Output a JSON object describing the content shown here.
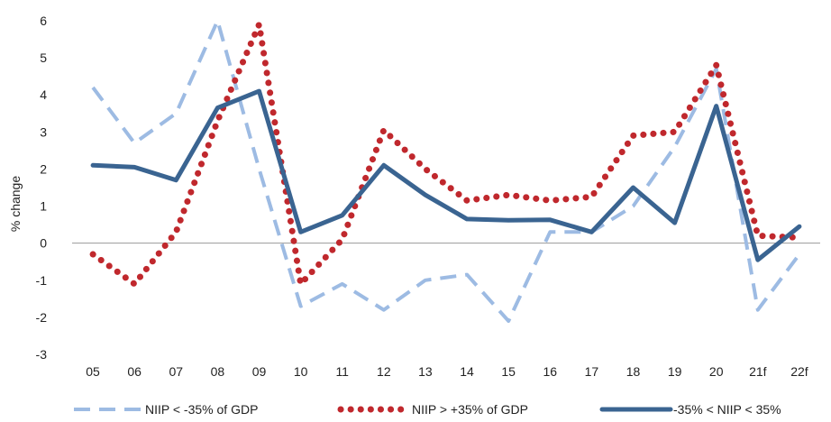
{
  "chart_data": {
    "type": "line",
    "ylabel": "% change",
    "xlabel": "",
    "title": "",
    "ylim": [
      -3,
      6
    ],
    "yticks": [
      -3,
      -2,
      -1,
      0,
      1,
      2,
      3,
      4,
      5,
      6
    ],
    "categories": [
      "05",
      "06",
      "07",
      "08",
      "09",
      "10",
      "11",
      "12",
      "13",
      "14",
      "15",
      "16",
      "17",
      "18",
      "19",
      "20",
      "21f",
      "22f"
    ],
    "legend_position": "bottom",
    "series": [
      {
        "name": "NIIP < -35% of GDP",
        "style": "dashed",
        "color": "#9dbbe3",
        "values": [
          4.2,
          2.7,
          3.5,
          6.0,
          2.0,
          -1.7,
          -1.1,
          -1.8,
          -1.0,
          -0.85,
          -2.1,
          0.3,
          0.3,
          1.0,
          2.6,
          4.7,
          -1.8,
          -0.3
        ]
      },
      {
        "name": "NIIP > +35% of GDP",
        "style": "dotted",
        "color": "#c0282d",
        "values": [
          -0.3,
          -1.1,
          0.3,
          3.3,
          5.9,
          -1.1,
          0.1,
          3.05,
          2.0,
          1.15,
          1.3,
          1.15,
          1.25,
          2.9,
          3.0,
          4.8,
          0.2,
          0.15
        ]
      },
      {
        "name": "-35% < NIIP < 35%",
        "style": "solid",
        "color": "#3a6491",
        "values": [
          2.1,
          2.05,
          1.7,
          3.65,
          4.1,
          0.3,
          0.75,
          2.1,
          1.3,
          0.65,
          0.62,
          0.63,
          0.3,
          1.5,
          0.55,
          3.7,
          -0.45,
          0.45
        ]
      }
    ]
  }
}
